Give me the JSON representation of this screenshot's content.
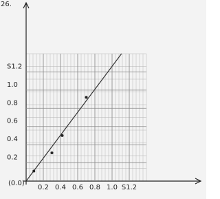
{
  "chart_data": {
    "type": "scatter",
    "title": "26.",
    "origin_label": "(0.0)",
    "x": [
      0.09,
      0.3,
      0.42,
      0.7
    ],
    "values": [
      0.11,
      0.31,
      0.5,
      0.92
    ],
    "color": "#222222",
    "line": {
      "x": [
        0,
        1.11
      ],
      "values": [
        0,
        1.4
      ],
      "color": "#333333"
    },
    "xlim": [
      0,
      1.4
    ],
    "ylim": [
      0,
      1.4
    ],
    "xticks": [
      0.2,
      0.4,
      0.6,
      0.8,
      {
        "value": 1,
        "label": "1.0"
      },
      {
        "value": 1.2,
        "label": "S1.2"
      }
    ],
    "yticks": [
      0.2,
      0.4,
      0.6,
      0.8,
      {
        "value": 1,
        "label": "1.0"
      },
      {
        "value": 1.2,
        "label": "S1.2"
      }
    ],
    "grid": true
  }
}
